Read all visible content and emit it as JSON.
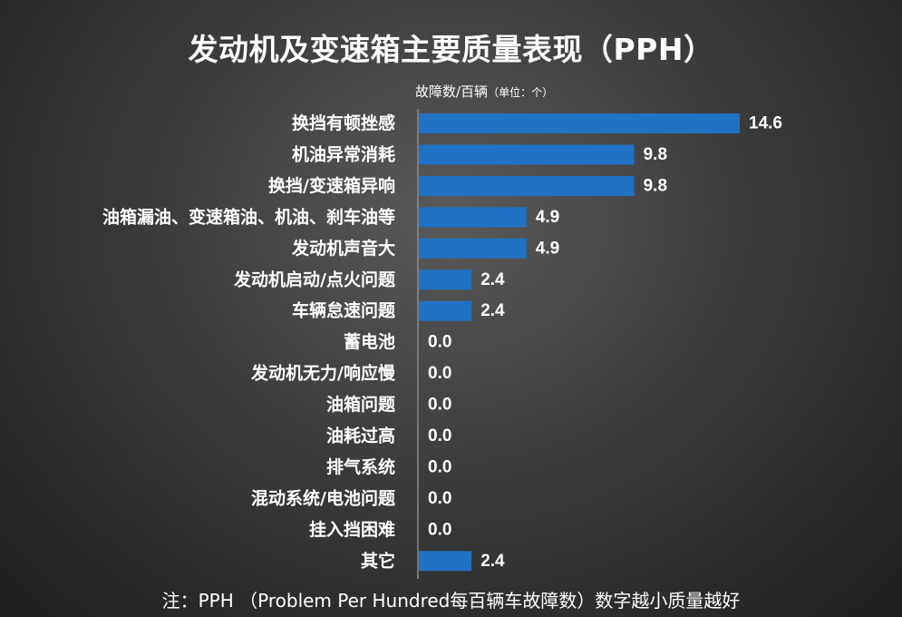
{
  "chart_data": {
    "type": "bar",
    "orientation": "horizontal",
    "title": "发动机及变速箱主要质量表现（PPH）",
    "unit_label_main": "故障数/百辆",
    "unit_label_note": "（单位：个）",
    "categories": [
      "换挡有顿挫感",
      "机油异常消耗",
      "换挡/变速箱异响",
      "油箱漏油、变速箱油、机油、刹车油等",
      "发动机声音大",
      "发动机启动/点火问题",
      "车辆怠速问题",
      "蓄电池",
      "发动机无力/响应慢",
      "油箱问题",
      "油耗过高",
      "排气系统",
      "混动系统/电池问题",
      "挂入挡困难",
      "其它"
    ],
    "values": [
      14.6,
      9.8,
      9.8,
      4.9,
      4.9,
      2.4,
      2.4,
      0.0,
      0.0,
      0.0,
      0.0,
      0.0,
      0.0,
      0.0,
      2.4
    ],
    "value_labels": [
      "14.6",
      "9.8",
      "9.8",
      "4.9",
      "4.9",
      "2.4",
      "2.4",
      "0.0",
      "0.0",
      "0.0",
      "0.0",
      "0.0",
      "0.0",
      "0.0",
      "2.4"
    ],
    "bar_color": "#1f72c4",
    "axis_color": "#8a8a8a",
    "grid": false,
    "legend": "none",
    "xlim": [
      0,
      14.6
    ]
  },
  "footnote": "注：PPH （Problem Per Hundred每百辆车故障数）数字越小质量越好"
}
